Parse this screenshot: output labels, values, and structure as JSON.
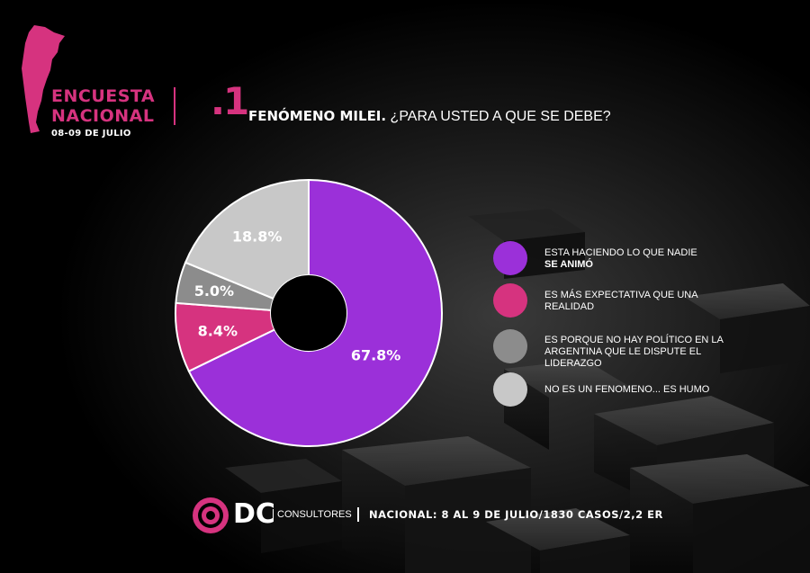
{
  "header": {
    "survey_title_line1": "ENCUESTA",
    "survey_title_line2": "NACIONAL",
    "survey_dates": "08-09 DE JULIO",
    "question_number": ".1",
    "question_bold": "FENÓMENO MILEI.",
    "question_rest": " ¿PARA USTED A QUE SE DEBE?"
  },
  "legend": [
    {
      "line1": "ESTA HACIENDO LO QUE NADIE",
      "line2": "SE ANIMÓ",
      "color": "#9b30d9"
    },
    {
      "line1": "ES MÁS EXPECTATIVA QUE UNA REALIDAD",
      "color": "#d6337f"
    },
    {
      "line1": "ES PORQUE NO HAY POLÍTICO EN LA ARGENTINA QUE LE DISPUTE EL LIDERAZGO",
      "color": "#8c8c8c"
    },
    {
      "line1": "NO ES UN FENOMENO... ES HUMO",
      "color": "#c8c8c8"
    }
  ],
  "chart_data": {
    "type": "pie",
    "title": "",
    "slices": [
      {
        "label": "ESTA HACIENDO LO QUE NADIE SE ANIMÓ",
        "value": 67.8,
        "display": "67.8%",
        "color": "#9b30d9"
      },
      {
        "label": "ES MÁS EXPECTATIVA QUE UNA REALIDAD",
        "value": 8.4,
        "display": "8.4%",
        "color": "#d6337f"
      },
      {
        "label": "ES PORQUE NO HAY POLÍTICO EN LA ARGENTINA QUE LE DISPUTE EL LIDERAZGO",
        "value": 5.0,
        "display": "5.0%",
        "color": "#8c8c8c"
      },
      {
        "label": "NO ES UN FENOMENO... ES HUMO",
        "value": 18.8,
        "display": "18.8%",
        "color": "#c8c8c8"
      }
    ],
    "donut": true,
    "legend_position": "right"
  },
  "footer": {
    "brand": "DC",
    "brand_sub": "CONSULTORES",
    "note": "NACIONAL: 8 AL 9 DE JULIO/1830 CASOS/2,2 ER"
  },
  "colors": {
    "accent": "#d6337f",
    "background": "#000000"
  }
}
